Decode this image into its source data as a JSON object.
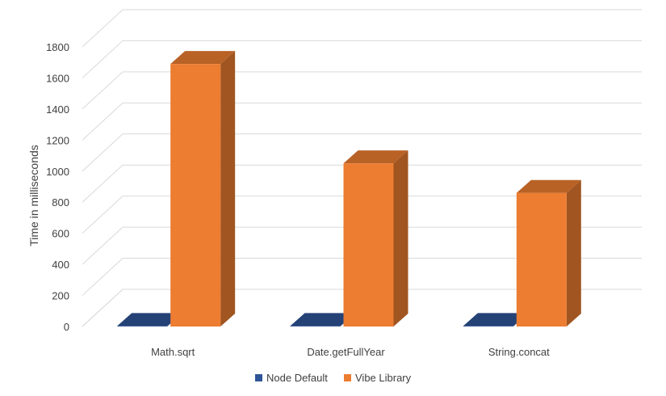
{
  "chart_data": {
    "type": "bar",
    "title": "",
    "xlabel": "",
    "ylabel": "Time in milliseconds",
    "categories": [
      "Math.sqrt",
      "Date.getFullYear",
      "String.concat"
    ],
    "series": [
      {
        "name": "Node Default",
        "values": [
          3,
          3,
          3
        ],
        "color": "#2f5597"
      },
      {
        "name": "Vibe Library",
        "values": [
          1690,
          1050,
          860
        ],
        "color": "#ed7d31"
      }
    ],
    "ylim": [
      0,
      1800
    ],
    "yticks": [
      0,
      200,
      400,
      600,
      800,
      1000,
      1200,
      1400,
      1600,
      1800
    ],
    "grid": true,
    "legend": "bottom",
    "style": "3d-clustered-column"
  }
}
